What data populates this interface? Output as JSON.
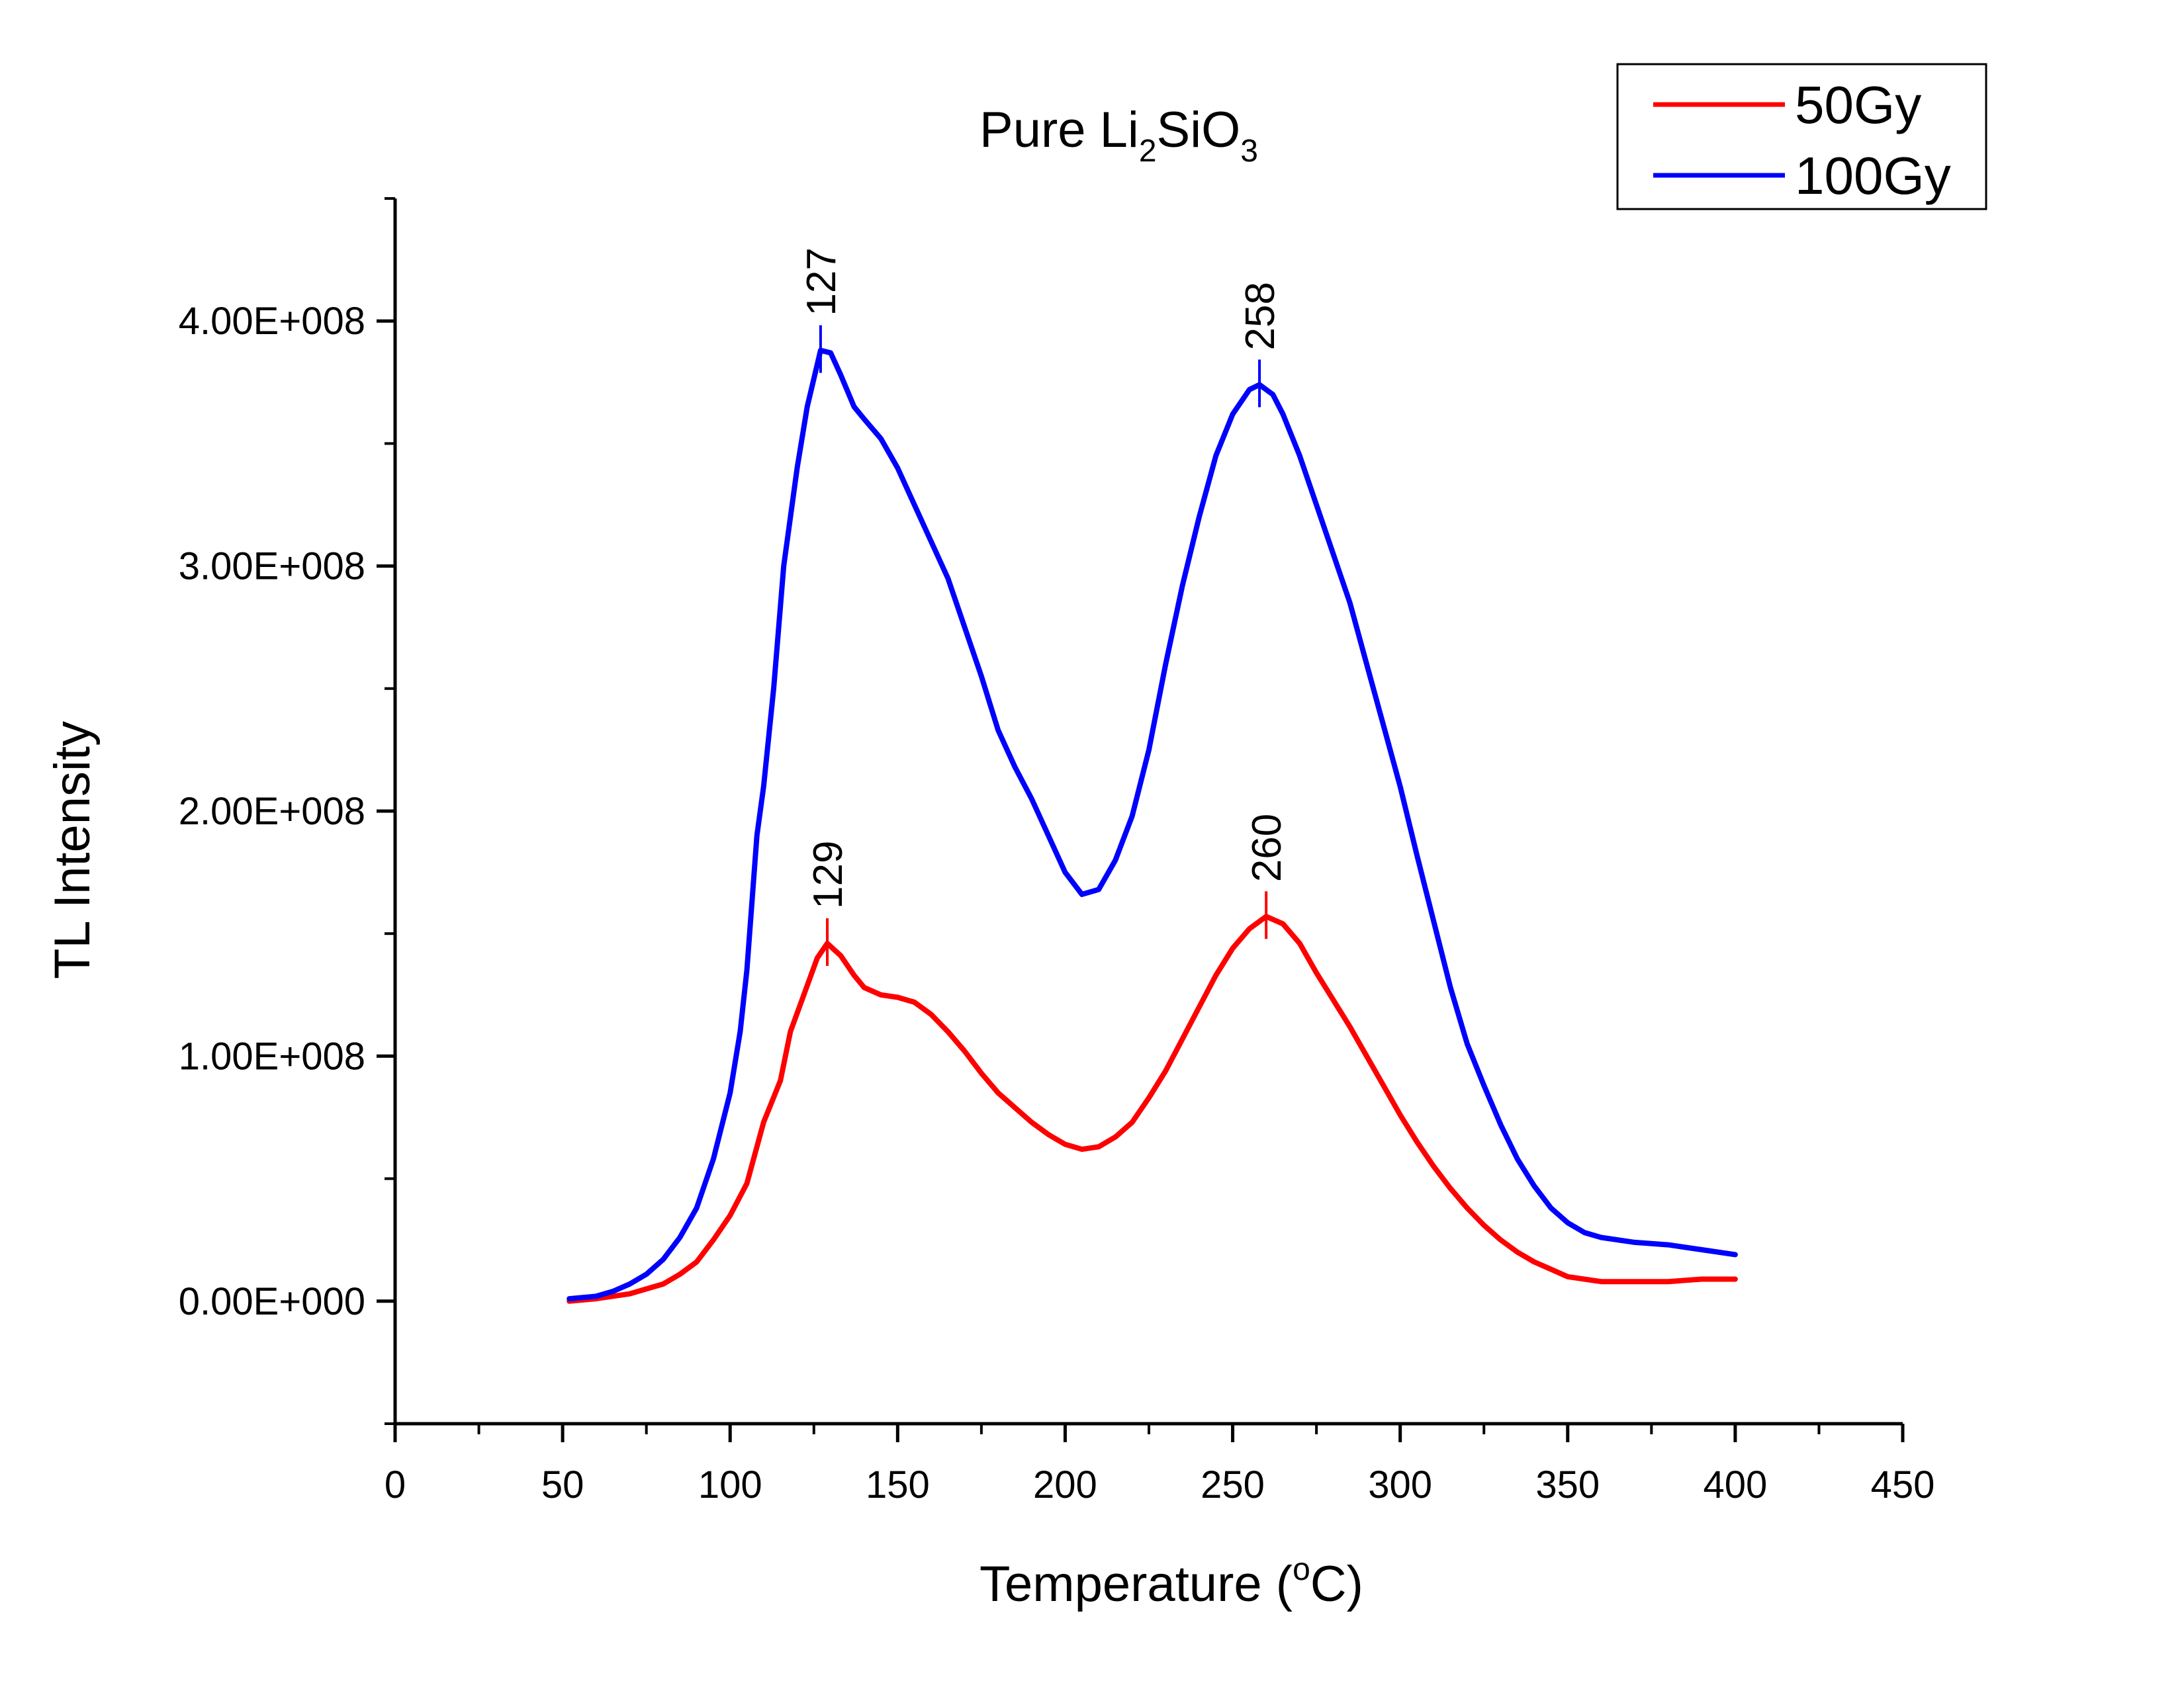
{
  "chart_data": {
    "type": "line",
    "title": {
      "prefix": "Pure Li",
      "sub1": "2",
      "mid": "SiO",
      "sub2": "3"
    },
    "xlabel": {
      "prefix": "Temperature (",
      "sup": "o",
      "suffix": "C)"
    },
    "ylabel": "TL Intensity",
    "xlim": [
      0,
      450
    ],
    "ylim": [
      -50000000,
      450000000
    ],
    "x_ticks": [
      0,
      50,
      100,
      150,
      200,
      250,
      300,
      350,
      400,
      450
    ],
    "x_tick_labels": [
      "0",
      "50",
      "100",
      "150",
      "200",
      "250",
      "300",
      "350",
      "400",
      "450"
    ],
    "y_ticks": [
      0,
      100000000,
      200000000,
      300000000,
      400000000
    ],
    "y_tick_labels": [
      "0.00E+000",
      "1.00E+008",
      "2.00E+008",
      "3.00E+008",
      "4.00E+008"
    ],
    "legend_position": "top-right",
    "series": [
      {
        "name": "50Gy",
        "color": "#ff0000",
        "points": [
          [
            52,
            0
          ],
          [
            60,
            1000000
          ],
          [
            70,
            3000000
          ],
          [
            80,
            7000000
          ],
          [
            85,
            11000000
          ],
          [
            90,
            16000000
          ],
          [
            95,
            25000000
          ],
          [
            100,
            35000000
          ],
          [
            105,
            48000000
          ],
          [
            110,
            73000000
          ],
          [
            115,
            90000000
          ],
          [
            118,
            110000000
          ],
          [
            122,
            125000000
          ],
          [
            126,
            140000000
          ],
          [
            129,
            146000000
          ],
          [
            133,
            141000000
          ],
          [
            137,
            133000000
          ],
          [
            140,
            128000000
          ],
          [
            145,
            125000000
          ],
          [
            150,
            124000000
          ],
          [
            155,
            122000000
          ],
          [
            160,
            117000000
          ],
          [
            165,
            110000000
          ],
          [
            170,
            102000000
          ],
          [
            175,
            93000000
          ],
          [
            180,
            85000000
          ],
          [
            185,
            79000000
          ],
          [
            190,
            73000000
          ],
          [
            195,
            68000000
          ],
          [
            200,
            64000000
          ],
          [
            205,
            62000000
          ],
          [
            210,
            63000000
          ],
          [
            215,
            67000000
          ],
          [
            220,
            73000000
          ],
          [
            225,
            83000000
          ],
          [
            230,
            94000000
          ],
          [
            235,
            107000000
          ],
          [
            240,
            120000000
          ],
          [
            245,
            133000000
          ],
          [
            250,
            144000000
          ],
          [
            255,
            152000000
          ],
          [
            260,
            157000000
          ],
          [
            265,
            154000000
          ],
          [
            270,
            146000000
          ],
          [
            275,
            134000000
          ],
          [
            280,
            123000000
          ],
          [
            285,
            112000000
          ],
          [
            290,
            100000000
          ],
          [
            295,
            88000000
          ],
          [
            300,
            76000000
          ],
          [
            305,
            65000000
          ],
          [
            310,
            55000000
          ],
          [
            315,
            46000000
          ],
          [
            320,
            38000000
          ],
          [
            325,
            31000000
          ],
          [
            330,
            25000000
          ],
          [
            335,
            20000000
          ],
          [
            340,
            16000000
          ],
          [
            345,
            13000000
          ],
          [
            350,
            10000000
          ],
          [
            360,
            8000000
          ],
          [
            370,
            8000000
          ],
          [
            380,
            8000000
          ],
          [
            390,
            9000000
          ],
          [
            400,
            9000000
          ]
        ]
      },
      {
        "name": "100Gy",
        "color": "#0000ff",
        "points": [
          [
            52,
            1000000
          ],
          [
            60,
            2000000
          ],
          [
            65,
            4000000
          ],
          [
            70,
            7000000
          ],
          [
            75,
            11000000
          ],
          [
            80,
            17000000
          ],
          [
            85,
            26000000
          ],
          [
            90,
            38000000
          ],
          [
            95,
            58000000
          ],
          [
            100,
            85000000
          ],
          [
            103,
            110000000
          ],
          [
            105,
            135000000
          ],
          [
            108,
            190000000
          ],
          [
            110,
            210000000
          ],
          [
            113,
            250000000
          ],
          [
            116,
            300000000
          ],
          [
            120,
            340000000
          ],
          [
            123,
            365000000
          ],
          [
            127,
            388000000
          ],
          [
            130,
            387000000
          ],
          [
            133,
            378000000
          ],
          [
            137,
            365000000
          ],
          [
            140,
            360000000
          ],
          [
            145,
            352000000
          ],
          [
            150,
            340000000
          ],
          [
            155,
            325000000
          ],
          [
            160,
            310000000
          ],
          [
            165,
            295000000
          ],
          [
            170,
            275000000
          ],
          [
            175,
            255000000
          ],
          [
            180,
            233000000
          ],
          [
            185,
            218000000
          ],
          [
            190,
            205000000
          ],
          [
            195,
            190000000
          ],
          [
            200,
            175000000
          ],
          [
            205,
            166000000
          ],
          [
            210,
            168000000
          ],
          [
            215,
            180000000
          ],
          [
            220,
            198000000
          ],
          [
            225,
            225000000
          ],
          [
            230,
            260000000
          ],
          [
            235,
            292000000
          ],
          [
            240,
            320000000
          ],
          [
            245,
            345000000
          ],
          [
            250,
            362000000
          ],
          [
            255,
            372000000
          ],
          [
            258,
            374000000
          ],
          [
            262,
            370000000
          ],
          [
            265,
            362000000
          ],
          [
            270,
            345000000
          ],
          [
            275,
            325000000
          ],
          [
            280,
            305000000
          ],
          [
            285,
            285000000
          ],
          [
            290,
            260000000
          ],
          [
            295,
            235000000
          ],
          [
            300,
            210000000
          ],
          [
            305,
            182000000
          ],
          [
            310,
            155000000
          ],
          [
            315,
            128000000
          ],
          [
            320,
            105000000
          ],
          [
            325,
            88000000
          ],
          [
            330,
            72000000
          ],
          [
            335,
            58000000
          ],
          [
            340,
            47000000
          ],
          [
            345,
            38000000
          ],
          [
            350,
            32000000
          ],
          [
            355,
            28000000
          ],
          [
            360,
            26000000
          ],
          [
            370,
            24000000
          ],
          [
            380,
            23000000
          ],
          [
            390,
            21000000
          ],
          [
            400,
            19000000
          ]
        ]
      }
    ],
    "annotations": [
      {
        "label": "127",
        "x": 127,
        "y": 388000000,
        "series": "100Gy"
      },
      {
        "label": "258",
        "x": 258,
        "y": 374000000,
        "series": "100Gy"
      },
      {
        "label": "129",
        "x": 129,
        "y": 146000000,
        "series": "50Gy"
      },
      {
        "label": "260",
        "x": 260,
        "y": 157000000,
        "series": "50Gy"
      }
    ]
  }
}
